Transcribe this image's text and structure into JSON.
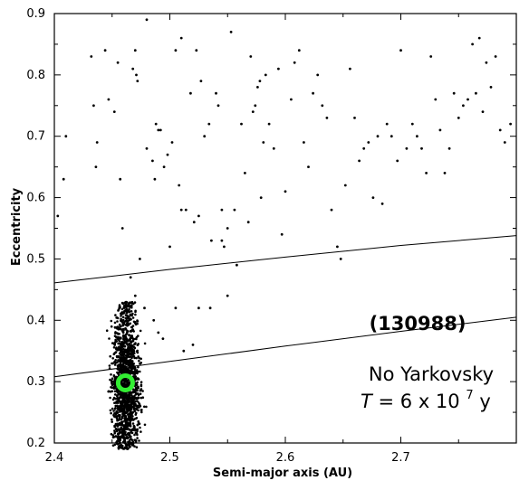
{
  "chart_data": {
    "type": "scatter",
    "title": "",
    "xlabel": "Semi-major axis (AU)",
    "ylabel": "Eccentricity",
    "xlim": [
      2.4,
      2.8
    ],
    "ylim": [
      0.2,
      0.9
    ],
    "x_ticks": [
      "2.4",
      "2.5",
      "2.6",
      "2.7"
    ],
    "y_ticks": [
      "0.2",
      "0.3",
      "0.4",
      "0.5",
      "0.6",
      "0.7",
      "0.8",
      "0.9"
    ],
    "grid": false,
    "annotations": {
      "object_id": "(130988)",
      "model": "No Yarkovsky",
      "time_prefix": "T",
      "time_value": "= 6 x 10",
      "time_exponent": "7",
      "time_unit": "y"
    },
    "marker": {
      "name": "(130988)",
      "x": 2.4615,
      "y": 0.298,
      "color": "#33ee33"
    },
    "cluster": {
      "x_center": 2.462,
      "y_center": 0.29,
      "x_spread": 0.006,
      "y_range": [
        0.19,
        0.43
      ],
      "count": 1500
    },
    "curves": [
      {
        "points": [
          [
            2.4,
            0.461
          ],
          [
            2.5,
            0.483
          ],
          [
            2.6,
            0.503
          ],
          [
            2.7,
            0.522
          ],
          [
            2.8,
            0.538
          ]
        ]
      },
      {
        "points": [
          [
            2.4,
            0.308
          ],
          [
            2.5,
            0.333
          ],
          [
            2.6,
            0.358
          ],
          [
            2.7,
            0.382
          ],
          [
            2.8,
            0.405
          ]
        ]
      }
    ],
    "scatter_points": [
      [
        2.403,
        0.57
      ],
      [
        2.408,
        0.63
      ],
      [
        2.41,
        0.7
      ],
      [
        2.432,
        0.83
      ],
      [
        2.434,
        0.75
      ],
      [
        2.436,
        0.65
      ],
      [
        2.437,
        0.69
      ],
      [
        2.444,
        0.84
      ],
      [
        2.447,
        0.76
      ],
      [
        2.452,
        0.74
      ],
      [
        2.455,
        0.82
      ],
      [
        2.457,
        0.63
      ],
      [
        2.459,
        0.55
      ],
      [
        2.468,
        0.81
      ],
      [
        2.47,
        0.84
      ],
      [
        2.471,
        0.8
      ],
      [
        2.472,
        0.79
      ],
      [
        2.474,
        0.5
      ],
      [
        2.48,
        0.89
      ],
      [
        2.48,
        0.68
      ],
      [
        2.485,
        0.66
      ],
      [
        2.488,
        0.72
      ],
      [
        2.49,
        0.71
      ],
      [
        2.487,
        0.63
      ],
      [
        2.492,
        0.71
      ],
      [
        2.495,
        0.65
      ],
      [
        2.498,
        0.67
      ],
      [
        2.5,
        0.52
      ],
      [
        2.502,
        0.69
      ],
      [
        2.505,
        0.84
      ],
      [
        2.508,
        0.62
      ],
      [
        2.51,
        0.58
      ],
      [
        2.51,
        0.86
      ],
      [
        2.514,
        0.58
      ],
      [
        2.518,
        0.77
      ],
      [
        2.521,
        0.56
      ],
      [
        2.523,
        0.84
      ],
      [
        2.525,
        0.57
      ],
      [
        2.527,
        0.79
      ],
      [
        2.53,
        0.7
      ],
      [
        2.534,
        0.72
      ],
      [
        2.536,
        0.53
      ],
      [
        2.54,
        0.77
      ],
      [
        2.542,
        0.75
      ],
      [
        2.545,
        0.58
      ],
      [
        2.547,
        0.52
      ],
      [
        2.55,
        0.55
      ],
      [
        2.553,
        0.87
      ],
      [
        2.556,
        0.58
      ],
      [
        2.558,
        0.49
      ],
      [
        2.562,
        0.72
      ],
      [
        2.565,
        0.64
      ],
      [
        2.568,
        0.56
      ],
      [
        2.57,
        0.83
      ],
      [
        2.572,
        0.74
      ],
      [
        2.574,
        0.75
      ],
      [
        2.576,
        0.78
      ],
      [
        2.578,
        0.79
      ],
      [
        2.579,
        0.6
      ],
      [
        2.581,
        0.69
      ],
      [
        2.583,
        0.8
      ],
      [
        2.586,
        0.72
      ],
      [
        2.59,
        0.68
      ],
      [
        2.594,
        0.81
      ],
      [
        2.597,
        0.54
      ],
      [
        2.6,
        0.61
      ],
      [
        2.605,
        0.76
      ],
      [
        2.608,
        0.82
      ],
      [
        2.612,
        0.84
      ],
      [
        2.616,
        0.69
      ],
      [
        2.62,
        0.65
      ],
      [
        2.624,
        0.77
      ],
      [
        2.628,
        0.8
      ],
      [
        2.632,
        0.75
      ],
      [
        2.636,
        0.73
      ],
      [
        2.64,
        0.58
      ],
      [
        2.645,
        0.52
      ],
      [
        2.648,
        0.5
      ],
      [
        2.652,
        0.62
      ],
      [
        2.656,
        0.81
      ],
      [
        2.66,
        0.73
      ],
      [
        2.664,
        0.66
      ],
      [
        2.668,
        0.68
      ],
      [
        2.672,
        0.69
      ],
      [
        2.676,
        0.6
      ],
      [
        2.68,
        0.7
      ],
      [
        2.684,
        0.59
      ],
      [
        2.688,
        0.72
      ],
      [
        2.692,
        0.7
      ],
      [
        2.697,
        0.66
      ],
      [
        2.7,
        0.84
      ],
      [
        2.705,
        0.68
      ],
      [
        2.71,
        0.72
      ],
      [
        2.714,
        0.7
      ],
      [
        2.718,
        0.68
      ],
      [
        2.722,
        0.64
      ],
      [
        2.726,
        0.83
      ],
      [
        2.73,
        0.76
      ],
      [
        2.734,
        0.71
      ],
      [
        2.738,
        0.64
      ],
      [
        2.742,
        0.68
      ],
      [
        2.746,
        0.77
      ],
      [
        2.75,
        0.73
      ],
      [
        2.754,
        0.75
      ],
      [
        2.758,
        0.76
      ],
      [
        2.762,
        0.85
      ],
      [
        2.765,
        0.77
      ],
      [
        2.768,
        0.86
      ],
      [
        2.771,
        0.74
      ],
      [
        2.774,
        0.82
      ],
      [
        2.778,
        0.78
      ],
      [
        2.782,
        0.83
      ],
      [
        2.786,
        0.71
      ],
      [
        2.79,
        0.69
      ],
      [
        2.795,
        0.72
      ],
      [
        2.466,
        0.47
      ],
      [
        2.47,
        0.44
      ],
      [
        2.478,
        0.42
      ],
      [
        2.486,
        0.4
      ],
      [
        2.49,
        0.38
      ],
      [
        2.494,
        0.37
      ],
      [
        2.505,
        0.42
      ],
      [
        2.512,
        0.35
      ],
      [
        2.52,
        0.36
      ],
      [
        2.535,
        0.42
      ],
      [
        2.545,
        0.53
      ],
      [
        2.55,
        0.44
      ],
      [
        2.525,
        0.42
      ]
    ]
  }
}
